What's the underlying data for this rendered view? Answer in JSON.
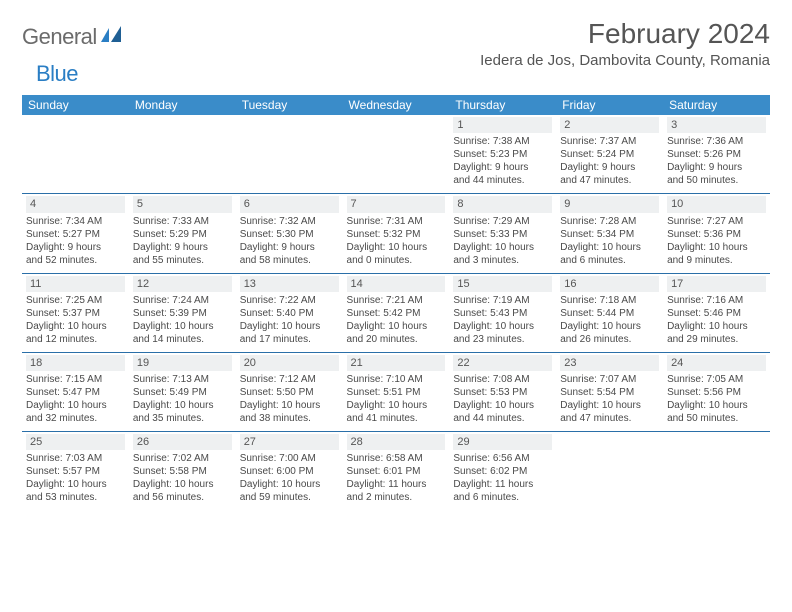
{
  "brand": {
    "part1": "General",
    "part2": "Blue"
  },
  "title": "February 2024",
  "location": "Iedera de Jos, Dambovita County, Romania",
  "colors": {
    "header_bg": "#3a8cc9",
    "header_fg": "#ffffff",
    "row_divider": "#2a6fa8",
    "daynum_bg": "#eef0f1",
    "text": "#4a4a4a",
    "title_text": "#555555",
    "logo_gray": "#6b6b6b",
    "logo_blue": "#2a7ec4"
  },
  "day_headers": [
    "Sunday",
    "Monday",
    "Tuesday",
    "Wednesday",
    "Thursday",
    "Friday",
    "Saturday"
  ],
  "weeks": [
    [
      null,
      null,
      null,
      null,
      {
        "n": "1",
        "sr": "7:38 AM",
        "ss": "5:23 PM",
        "dl1": "Daylight: 9 hours",
        "dl2": "and 44 minutes."
      },
      {
        "n": "2",
        "sr": "7:37 AM",
        "ss": "5:24 PM",
        "dl1": "Daylight: 9 hours",
        "dl2": "and 47 minutes."
      },
      {
        "n": "3",
        "sr": "7:36 AM",
        "ss": "5:26 PM",
        "dl1": "Daylight: 9 hours",
        "dl2": "and 50 minutes."
      }
    ],
    [
      {
        "n": "4",
        "sr": "7:34 AM",
        "ss": "5:27 PM",
        "dl1": "Daylight: 9 hours",
        "dl2": "and 52 minutes."
      },
      {
        "n": "5",
        "sr": "7:33 AM",
        "ss": "5:29 PM",
        "dl1": "Daylight: 9 hours",
        "dl2": "and 55 minutes."
      },
      {
        "n": "6",
        "sr": "7:32 AM",
        "ss": "5:30 PM",
        "dl1": "Daylight: 9 hours",
        "dl2": "and 58 minutes."
      },
      {
        "n": "7",
        "sr": "7:31 AM",
        "ss": "5:32 PM",
        "dl1": "Daylight: 10 hours",
        "dl2": "and 0 minutes."
      },
      {
        "n": "8",
        "sr": "7:29 AM",
        "ss": "5:33 PM",
        "dl1": "Daylight: 10 hours",
        "dl2": "and 3 minutes."
      },
      {
        "n": "9",
        "sr": "7:28 AM",
        "ss": "5:34 PM",
        "dl1": "Daylight: 10 hours",
        "dl2": "and 6 minutes."
      },
      {
        "n": "10",
        "sr": "7:27 AM",
        "ss": "5:36 PM",
        "dl1": "Daylight: 10 hours",
        "dl2": "and 9 minutes."
      }
    ],
    [
      {
        "n": "11",
        "sr": "7:25 AM",
        "ss": "5:37 PM",
        "dl1": "Daylight: 10 hours",
        "dl2": "and 12 minutes."
      },
      {
        "n": "12",
        "sr": "7:24 AM",
        "ss": "5:39 PM",
        "dl1": "Daylight: 10 hours",
        "dl2": "and 14 minutes."
      },
      {
        "n": "13",
        "sr": "7:22 AM",
        "ss": "5:40 PM",
        "dl1": "Daylight: 10 hours",
        "dl2": "and 17 minutes."
      },
      {
        "n": "14",
        "sr": "7:21 AM",
        "ss": "5:42 PM",
        "dl1": "Daylight: 10 hours",
        "dl2": "and 20 minutes."
      },
      {
        "n": "15",
        "sr": "7:19 AM",
        "ss": "5:43 PM",
        "dl1": "Daylight: 10 hours",
        "dl2": "and 23 minutes."
      },
      {
        "n": "16",
        "sr": "7:18 AM",
        "ss": "5:44 PM",
        "dl1": "Daylight: 10 hours",
        "dl2": "and 26 minutes."
      },
      {
        "n": "17",
        "sr": "7:16 AM",
        "ss": "5:46 PM",
        "dl1": "Daylight: 10 hours",
        "dl2": "and 29 minutes."
      }
    ],
    [
      {
        "n": "18",
        "sr": "7:15 AM",
        "ss": "5:47 PM",
        "dl1": "Daylight: 10 hours",
        "dl2": "and 32 minutes."
      },
      {
        "n": "19",
        "sr": "7:13 AM",
        "ss": "5:49 PM",
        "dl1": "Daylight: 10 hours",
        "dl2": "and 35 minutes."
      },
      {
        "n": "20",
        "sr": "7:12 AM",
        "ss": "5:50 PM",
        "dl1": "Daylight: 10 hours",
        "dl2": "and 38 minutes."
      },
      {
        "n": "21",
        "sr": "7:10 AM",
        "ss": "5:51 PM",
        "dl1": "Daylight: 10 hours",
        "dl2": "and 41 minutes."
      },
      {
        "n": "22",
        "sr": "7:08 AM",
        "ss": "5:53 PM",
        "dl1": "Daylight: 10 hours",
        "dl2": "and 44 minutes."
      },
      {
        "n": "23",
        "sr": "7:07 AM",
        "ss": "5:54 PM",
        "dl1": "Daylight: 10 hours",
        "dl2": "and 47 minutes."
      },
      {
        "n": "24",
        "sr": "7:05 AM",
        "ss": "5:56 PM",
        "dl1": "Daylight: 10 hours",
        "dl2": "and 50 minutes."
      }
    ],
    [
      {
        "n": "25",
        "sr": "7:03 AM",
        "ss": "5:57 PM",
        "dl1": "Daylight: 10 hours",
        "dl2": "and 53 minutes."
      },
      {
        "n": "26",
        "sr": "7:02 AM",
        "ss": "5:58 PM",
        "dl1": "Daylight: 10 hours",
        "dl2": "and 56 minutes."
      },
      {
        "n": "27",
        "sr": "7:00 AM",
        "ss": "6:00 PM",
        "dl1": "Daylight: 10 hours",
        "dl2": "and 59 minutes."
      },
      {
        "n": "28",
        "sr": "6:58 AM",
        "ss": "6:01 PM",
        "dl1": "Daylight: 11 hours",
        "dl2": "and 2 minutes."
      },
      {
        "n": "29",
        "sr": "6:56 AM",
        "ss": "6:02 PM",
        "dl1": "Daylight: 11 hours",
        "dl2": "and 6 minutes."
      },
      null,
      null
    ]
  ],
  "labels": {
    "sunrise_prefix": "Sunrise: ",
    "sunset_prefix": "Sunset: "
  }
}
